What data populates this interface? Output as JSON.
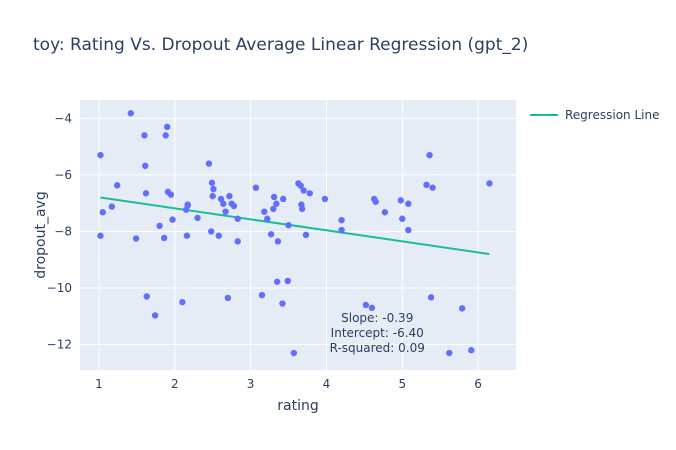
{
  "chart_data": {
    "type": "scatter",
    "title": "toy: Rating Vs. Dropout Average Linear Regression (gpt_2)",
    "xlabel": "rating",
    "ylabel": "dropout_avg",
    "xlim": [
      0.75,
      6.5
    ],
    "ylim": [
      -12.9,
      -3.35
    ],
    "x_ticks": [
      1,
      2,
      3,
      4,
      5,
      6
    ],
    "y_ticks": [
      -12,
      -10,
      -8,
      -6,
      -4
    ],
    "grid": true,
    "legend_position": "top-right",
    "colors": {
      "plot_bg": "#e5ecf6",
      "points": "#636efa",
      "line": "#1abc9c"
    },
    "series": [
      {
        "name": "",
        "mode": "markers",
        "points": [
          [
            1.02,
            -5.3
          ],
          [
            1.02,
            -8.15
          ],
          [
            1.05,
            -7.32
          ],
          [
            1.17,
            -7.12
          ],
          [
            1.24,
            -6.37
          ],
          [
            1.42,
            -3.82
          ],
          [
            1.49,
            -8.25
          ],
          [
            1.6,
            -4.6
          ],
          [
            1.61,
            -5.68
          ],
          [
            1.62,
            -6.65
          ],
          [
            1.63,
            -10.3
          ],
          [
            1.74,
            -10.97
          ],
          [
            1.8,
            -7.8
          ],
          [
            1.86,
            -8.23
          ],
          [
            1.88,
            -4.6
          ],
          [
            1.9,
            -4.3
          ],
          [
            1.91,
            -6.6
          ],
          [
            1.95,
            -6.7
          ],
          [
            1.97,
            -7.58
          ],
          [
            2.1,
            -10.5
          ],
          [
            2.15,
            -7.23
          ],
          [
            2.17,
            -7.08
          ],
          [
            2.17,
            -7.05
          ],
          [
            2.16,
            -8.15
          ],
          [
            2.3,
            -7.52
          ],
          [
            2.45,
            -5.6
          ],
          [
            2.48,
            -8.0
          ],
          [
            2.49,
            -6.28
          ],
          [
            2.51,
            -6.5
          ],
          [
            2.5,
            -6.75
          ],
          [
            2.58,
            -8.15
          ],
          [
            2.61,
            -6.85
          ],
          [
            2.64,
            -7.02
          ],
          [
            2.67,
            -7.3
          ],
          [
            2.7,
            -10.35
          ],
          [
            2.72,
            -6.75
          ],
          [
            2.75,
            -7.02
          ],
          [
            2.78,
            -7.1
          ],
          [
            2.83,
            -7.55
          ],
          [
            2.83,
            -8.35
          ],
          [
            3.07,
            -6.45
          ],
          [
            3.15,
            -10.25
          ],
          [
            3.18,
            -7.3
          ],
          [
            3.22,
            -7.55
          ],
          [
            3.27,
            -8.1
          ],
          [
            3.31,
            -6.78
          ],
          [
            3.3,
            -7.2
          ],
          [
            3.34,
            -7.02
          ],
          [
            3.35,
            -9.78
          ],
          [
            3.36,
            -8.35
          ],
          [
            3.42,
            -10.55
          ],
          [
            3.43,
            -6.85
          ],
          [
            3.49,
            -9.75
          ],
          [
            3.5,
            -7.78
          ],
          [
            3.57,
            -12.3
          ],
          [
            3.63,
            -6.3
          ],
          [
            3.66,
            -6.38
          ],
          [
            3.67,
            -7.05
          ],
          [
            3.68,
            -7.2
          ],
          [
            3.7,
            -6.55
          ],
          [
            3.73,
            -8.12
          ],
          [
            3.78,
            -6.65
          ],
          [
            3.98,
            -6.85
          ],
          [
            4.2,
            -7.6
          ],
          [
            4.2,
            -7.95
          ],
          [
            4.52,
            -10.6
          ],
          [
            4.6,
            -10.7
          ],
          [
            4.63,
            -6.85
          ],
          [
            4.65,
            -6.95
          ],
          [
            4.77,
            -7.32
          ],
          [
            4.98,
            -6.9
          ],
          [
            5.0,
            -7.55
          ],
          [
            5.08,
            -7.02
          ],
          [
            5.08,
            -7.95
          ],
          [
            5.32,
            -6.35
          ],
          [
            5.36,
            -5.3
          ],
          [
            5.38,
            -10.33
          ],
          [
            5.4,
            -6.45
          ],
          [
            5.62,
            -12.3
          ],
          [
            5.79,
            -10.72
          ],
          [
            5.91,
            -12.2
          ],
          [
            6.15,
            -6.3
          ]
        ]
      },
      {
        "name": "Regression Line",
        "mode": "line",
        "x": [
          1.02,
          6.15
        ],
        "y": [
          -6.798,
          -8.799
        ]
      }
    ],
    "annotation_lines": [
      "Slope: -0.39",
      "Intercept: -6.40",
      "R-squared: 0.09"
    ],
    "annotation_anchor": {
      "x": 4.67,
      "y": -11.2
    }
  }
}
